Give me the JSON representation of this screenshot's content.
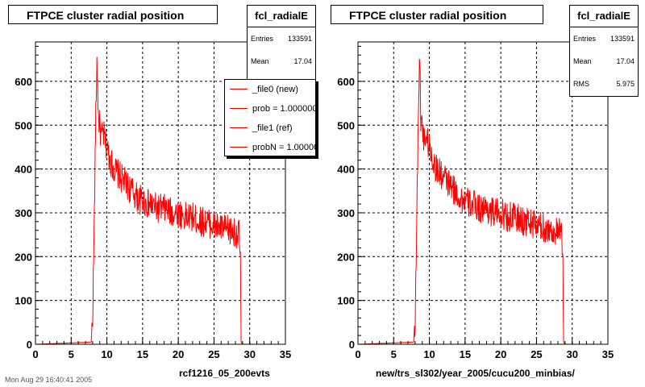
{
  "chart_data": [
    {
      "type": "line",
      "title": "FTPCE cluster radial position",
      "xlabel": "rcf1216_05_200evts",
      "ylabel": "",
      "xlim": [
        0,
        35
      ],
      "ylim": [
        0,
        690
      ],
      "x_ticks": [
        "0",
        "5",
        "10",
        "15",
        "20",
        "25",
        "30",
        "35"
      ],
      "y_ticks": [
        "0",
        "100",
        "200",
        "300",
        "400",
        "500",
        "600"
      ],
      "grid": true,
      "color": "#ff0000",
      "series": [
        {
          "x": [
            0,
            7.8,
            8.0,
            8.2,
            8.4,
            8.5,
            8.6,
            8.7,
            8.8,
            9.0,
            9.2,
            9.5,
            10,
            10.5,
            11,
            11.5,
            12,
            12.5,
            13,
            13.5,
            14,
            14.5,
            15,
            15.5,
            16,
            17,
            18,
            19,
            20,
            21,
            22,
            23,
            24,
            25,
            26,
            27,
            28,
            28.5,
            28.7,
            28.8,
            29,
            35
          ],
          "y": [
            0,
            5,
            60,
            240,
            480,
            560,
            640,
            600,
            520,
            500,
            470,
            480,
            450,
            420,
            400,
            390,
            380,
            370,
            360,
            350,
            340,
            330,
            330,
            320,
            320,
            310,
            310,
            300,
            300,
            290,
            290,
            280,
            280,
            270,
            265,
            260,
            255,
            250,
            200,
            5,
            0,
            0
          ]
        }
      ],
      "stats": {
        "name": "fcl_radialE",
        "entries_label": "Entries",
        "entries": "133591",
        "mean_label": "Mean",
        "mean": "17.04"
      },
      "legend": [
        "_file0 (new)",
        "prob = 1.000000",
        "_file1 (ref)",
        "probN = 1.000000"
      ]
    },
    {
      "type": "line",
      "title": "FTPCE cluster radial position",
      "xlabel": "new/trs_sl302/year_2005/cucu200_minbias/",
      "ylabel": "",
      "xlim": [
        0,
        35
      ],
      "ylim": [
        0,
        690
      ],
      "x_ticks": [
        "0",
        "5",
        "10",
        "15",
        "20",
        "25",
        "30",
        "35"
      ],
      "y_ticks": [
        "0",
        "100",
        "200",
        "300",
        "400",
        "500",
        "600"
      ],
      "grid": true,
      "color": "#ff0000",
      "series": [
        {
          "x": [
            0,
            7.8,
            8.0,
            8.2,
            8.4,
            8.5,
            8.6,
            8.7,
            8.8,
            9.0,
            9.2,
            9.5,
            10,
            10.5,
            11,
            11.5,
            12,
            12.5,
            13,
            13.5,
            14,
            14.5,
            15,
            15.5,
            16,
            17,
            18,
            19,
            20,
            21,
            22,
            23,
            24,
            25,
            26,
            27,
            28,
            28.5,
            28.7,
            28.8,
            29,
            35
          ],
          "y": [
            0,
            5,
            60,
            240,
            480,
            560,
            640,
            600,
            520,
            500,
            470,
            480,
            450,
            420,
            400,
            390,
            380,
            370,
            360,
            350,
            340,
            330,
            330,
            320,
            320,
            310,
            310,
            300,
            300,
            290,
            290,
            280,
            280,
            270,
            265,
            260,
            255,
            250,
            200,
            5,
            0,
            0
          ]
        }
      ],
      "stats": {
        "name": "fcl_radialE",
        "entries_label": "Entries",
        "entries": "133591",
        "mean_label": "Mean",
        "mean": "17.04",
        "rms_label": "RMS",
        "rms": "5.975"
      }
    }
  ],
  "footer_text": "Mon Aug 29 16:40:41 2005"
}
